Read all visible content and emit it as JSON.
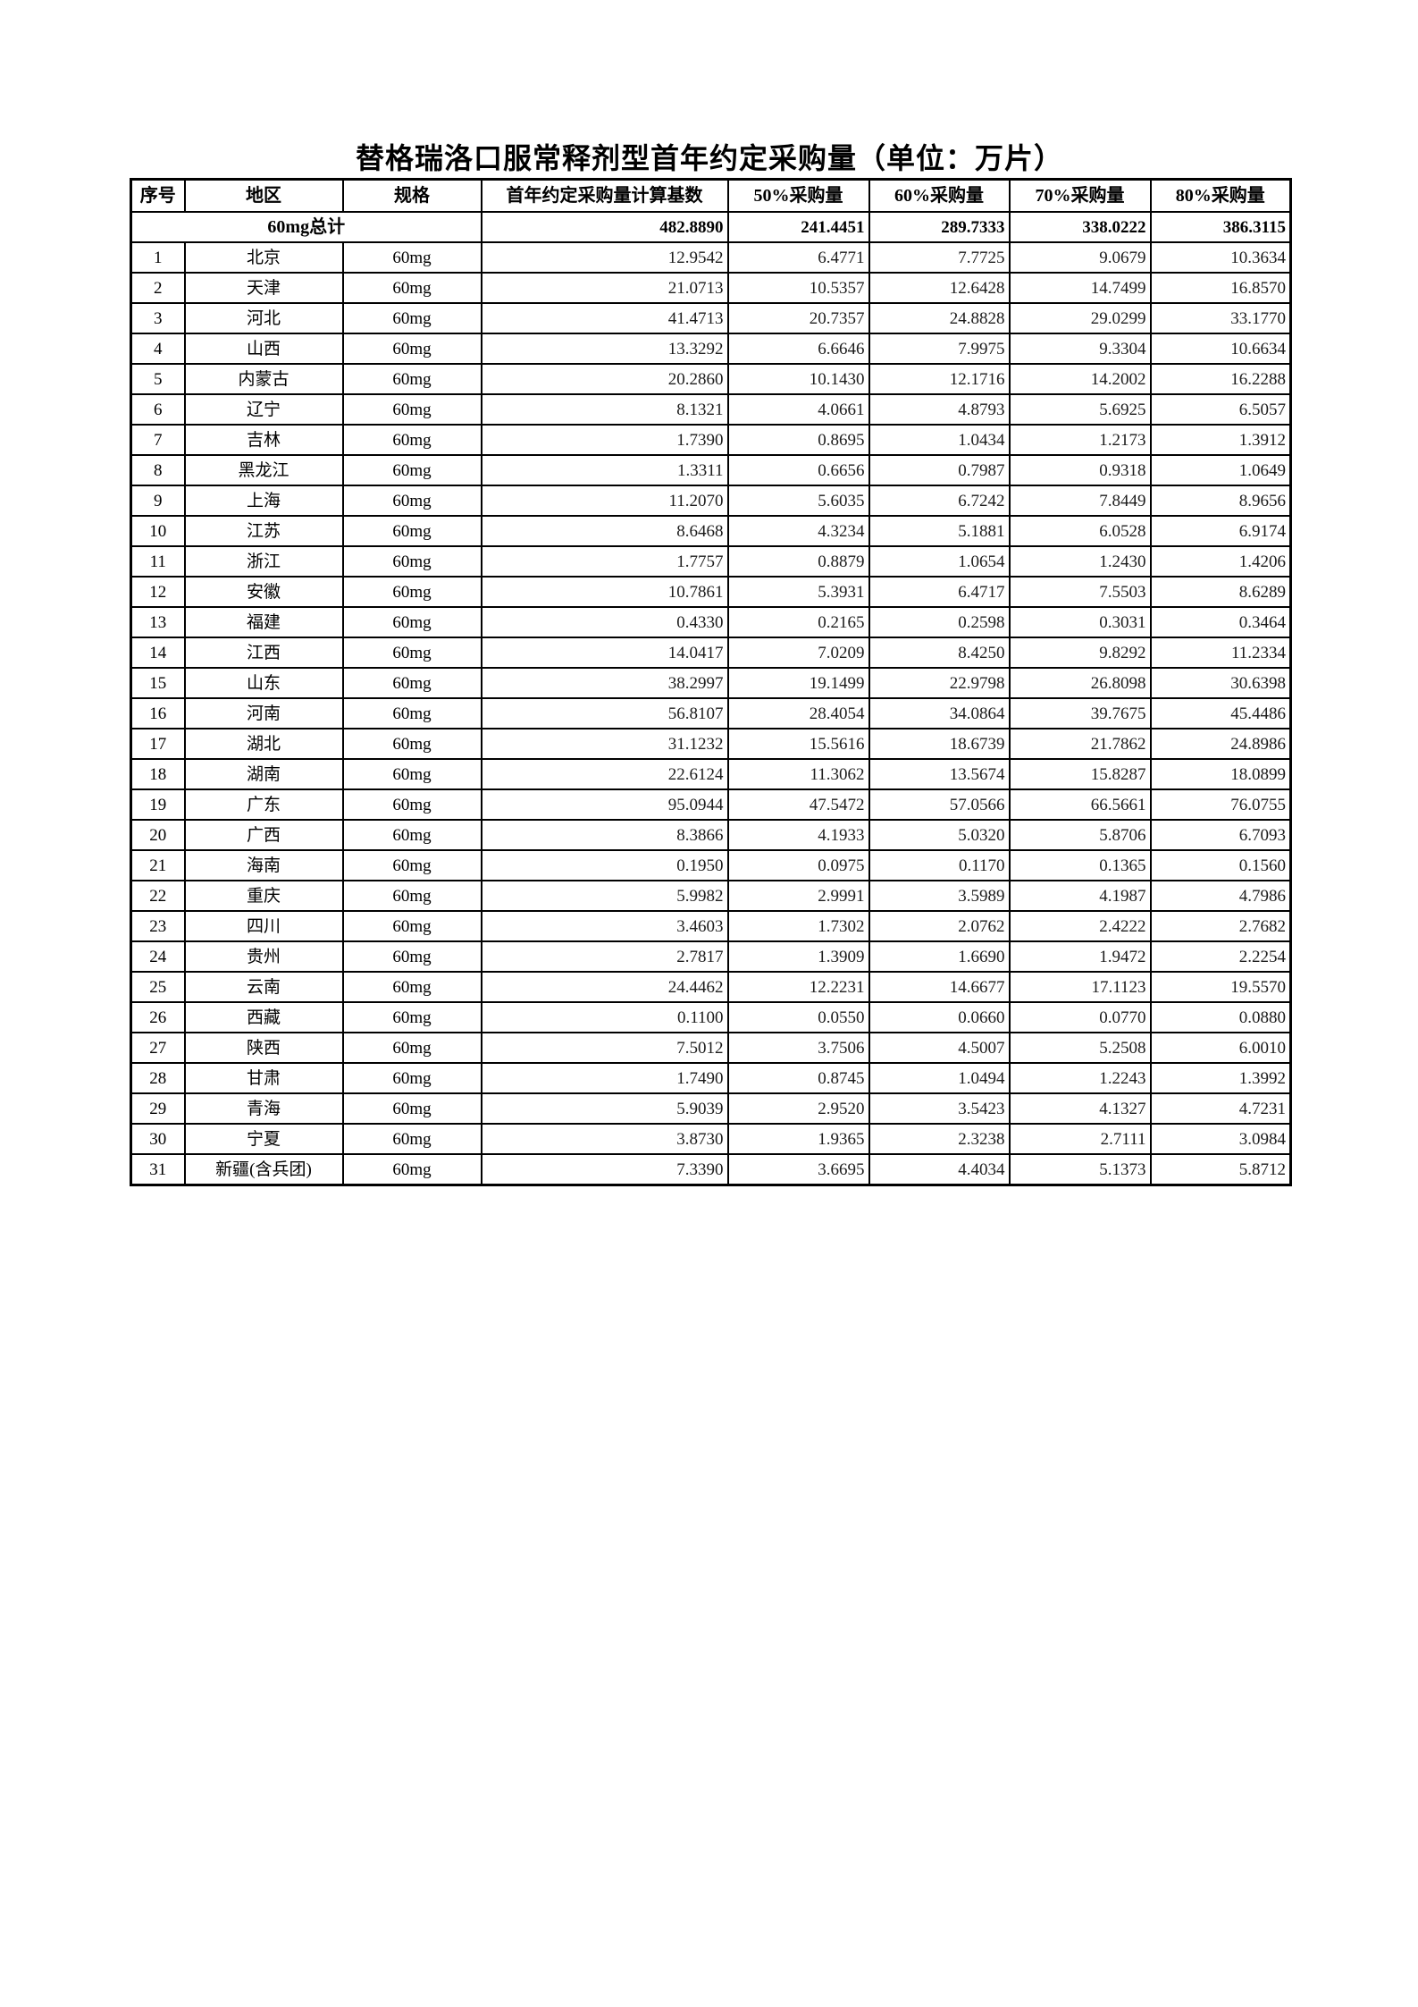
{
  "page": {
    "title": "替格瑞洛口服常释剂型首年约定采购量（单位：万片）"
  },
  "table": {
    "headers": [
      "序号",
      "地区",
      "规格",
      "首年约定采购量计算基数",
      "50%采购量",
      "60%采购量",
      "70%采购量",
      "80%采购量"
    ],
    "summary": {
      "label": "60mg总计",
      "base": "482.8890",
      "p50": "241.4451",
      "p60": "289.7333",
      "p70": "338.0222",
      "p80": "386.3115"
    },
    "rows": [
      {
        "no": "1",
        "region": "北京",
        "spec": "60mg",
        "base": "12.9542",
        "p50": "6.4771",
        "p60": "7.7725",
        "p70": "9.0679",
        "p80": "10.3634"
      },
      {
        "no": "2",
        "region": "天津",
        "spec": "60mg",
        "base": "21.0713",
        "p50": "10.5357",
        "p60": "12.6428",
        "p70": "14.7499",
        "p80": "16.8570"
      },
      {
        "no": "3",
        "region": "河北",
        "spec": "60mg",
        "base": "41.4713",
        "p50": "20.7357",
        "p60": "24.8828",
        "p70": "29.0299",
        "p80": "33.1770"
      },
      {
        "no": "4",
        "region": "山西",
        "spec": "60mg",
        "base": "13.3292",
        "p50": "6.6646",
        "p60": "7.9975",
        "p70": "9.3304",
        "p80": "10.6634"
      },
      {
        "no": "5",
        "region": "内蒙古",
        "spec": "60mg",
        "base": "20.2860",
        "p50": "10.1430",
        "p60": "12.1716",
        "p70": "14.2002",
        "p80": "16.2288"
      },
      {
        "no": "6",
        "region": "辽宁",
        "spec": "60mg",
        "base": "8.1321",
        "p50": "4.0661",
        "p60": "4.8793",
        "p70": "5.6925",
        "p80": "6.5057"
      },
      {
        "no": "7",
        "region": "吉林",
        "spec": "60mg",
        "base": "1.7390",
        "p50": "0.8695",
        "p60": "1.0434",
        "p70": "1.2173",
        "p80": "1.3912"
      },
      {
        "no": "8",
        "region": "黑龙江",
        "spec": "60mg",
        "base": "1.3311",
        "p50": "0.6656",
        "p60": "0.7987",
        "p70": "0.9318",
        "p80": "1.0649"
      },
      {
        "no": "9",
        "region": "上海",
        "spec": "60mg",
        "base": "11.2070",
        "p50": "5.6035",
        "p60": "6.7242",
        "p70": "7.8449",
        "p80": "8.9656"
      },
      {
        "no": "10",
        "region": "江苏",
        "spec": "60mg",
        "base": "8.6468",
        "p50": "4.3234",
        "p60": "5.1881",
        "p70": "6.0528",
        "p80": "6.9174"
      },
      {
        "no": "11",
        "region": "浙江",
        "spec": "60mg",
        "base": "1.7757",
        "p50": "0.8879",
        "p60": "1.0654",
        "p70": "1.2430",
        "p80": "1.4206"
      },
      {
        "no": "12",
        "region": "安徽",
        "spec": "60mg",
        "base": "10.7861",
        "p50": "5.3931",
        "p60": "6.4717",
        "p70": "7.5503",
        "p80": "8.6289"
      },
      {
        "no": "13",
        "region": "福建",
        "spec": "60mg",
        "base": "0.4330",
        "p50": "0.2165",
        "p60": "0.2598",
        "p70": "0.3031",
        "p80": "0.3464"
      },
      {
        "no": "14",
        "region": "江西",
        "spec": "60mg",
        "base": "14.0417",
        "p50": "7.0209",
        "p60": "8.4250",
        "p70": "9.8292",
        "p80": "11.2334"
      },
      {
        "no": "15",
        "region": "山东",
        "spec": "60mg",
        "base": "38.2997",
        "p50": "19.1499",
        "p60": "22.9798",
        "p70": "26.8098",
        "p80": "30.6398"
      },
      {
        "no": "16",
        "region": "河南",
        "spec": "60mg",
        "base": "56.8107",
        "p50": "28.4054",
        "p60": "34.0864",
        "p70": "39.7675",
        "p80": "45.4486"
      },
      {
        "no": "17",
        "region": "湖北",
        "spec": "60mg",
        "base": "31.1232",
        "p50": "15.5616",
        "p60": "18.6739",
        "p70": "21.7862",
        "p80": "24.8986"
      },
      {
        "no": "18",
        "region": "湖南",
        "spec": "60mg",
        "base": "22.6124",
        "p50": "11.3062",
        "p60": "13.5674",
        "p70": "15.8287",
        "p80": "18.0899"
      },
      {
        "no": "19",
        "region": "广东",
        "spec": "60mg",
        "base": "95.0944",
        "p50": "47.5472",
        "p60": "57.0566",
        "p70": "66.5661",
        "p80": "76.0755"
      },
      {
        "no": "20",
        "region": "广西",
        "spec": "60mg",
        "base": "8.3866",
        "p50": "4.1933",
        "p60": "5.0320",
        "p70": "5.8706",
        "p80": "6.7093"
      },
      {
        "no": "21",
        "region": "海南",
        "spec": "60mg",
        "base": "0.1950",
        "p50": "0.0975",
        "p60": "0.1170",
        "p70": "0.1365",
        "p80": "0.1560"
      },
      {
        "no": "22",
        "region": "重庆",
        "spec": "60mg",
        "base": "5.9982",
        "p50": "2.9991",
        "p60": "3.5989",
        "p70": "4.1987",
        "p80": "4.7986"
      },
      {
        "no": "23",
        "region": "四川",
        "spec": "60mg",
        "base": "3.4603",
        "p50": "1.7302",
        "p60": "2.0762",
        "p70": "2.4222",
        "p80": "2.7682"
      },
      {
        "no": "24",
        "region": "贵州",
        "spec": "60mg",
        "base": "2.7817",
        "p50": "1.3909",
        "p60": "1.6690",
        "p70": "1.9472",
        "p80": "2.2254"
      },
      {
        "no": "25",
        "region": "云南",
        "spec": "60mg",
        "base": "24.4462",
        "p50": "12.2231",
        "p60": "14.6677",
        "p70": "17.1123",
        "p80": "19.5570"
      },
      {
        "no": "26",
        "region": "西藏",
        "spec": "60mg",
        "base": "0.1100",
        "p50": "0.0550",
        "p60": "0.0660",
        "p70": "0.0770",
        "p80": "0.0880"
      },
      {
        "no": "27",
        "region": "陕西",
        "spec": "60mg",
        "base": "7.5012",
        "p50": "3.7506",
        "p60": "4.5007",
        "p70": "5.2508",
        "p80": "6.0010"
      },
      {
        "no": "28",
        "region": "甘肃",
        "spec": "60mg",
        "base": "1.7490",
        "p50": "0.8745",
        "p60": "1.0494",
        "p70": "1.2243",
        "p80": "1.3992"
      },
      {
        "no": "29",
        "region": "青海",
        "spec": "60mg",
        "base": "5.9039",
        "p50": "2.9520",
        "p60": "3.5423",
        "p70": "4.1327",
        "p80": "4.7231"
      },
      {
        "no": "30",
        "region": "宁夏",
        "spec": "60mg",
        "base": "3.8730",
        "p50": "1.9365",
        "p60": "2.3238",
        "p70": "2.7111",
        "p80": "3.0984"
      },
      {
        "no": "31",
        "region": "新疆(含兵团)",
        "spec": "60mg",
        "base": "7.3390",
        "p50": "3.6695",
        "p60": "4.4034",
        "p70": "5.1373",
        "p80": "5.8712"
      }
    ]
  }
}
